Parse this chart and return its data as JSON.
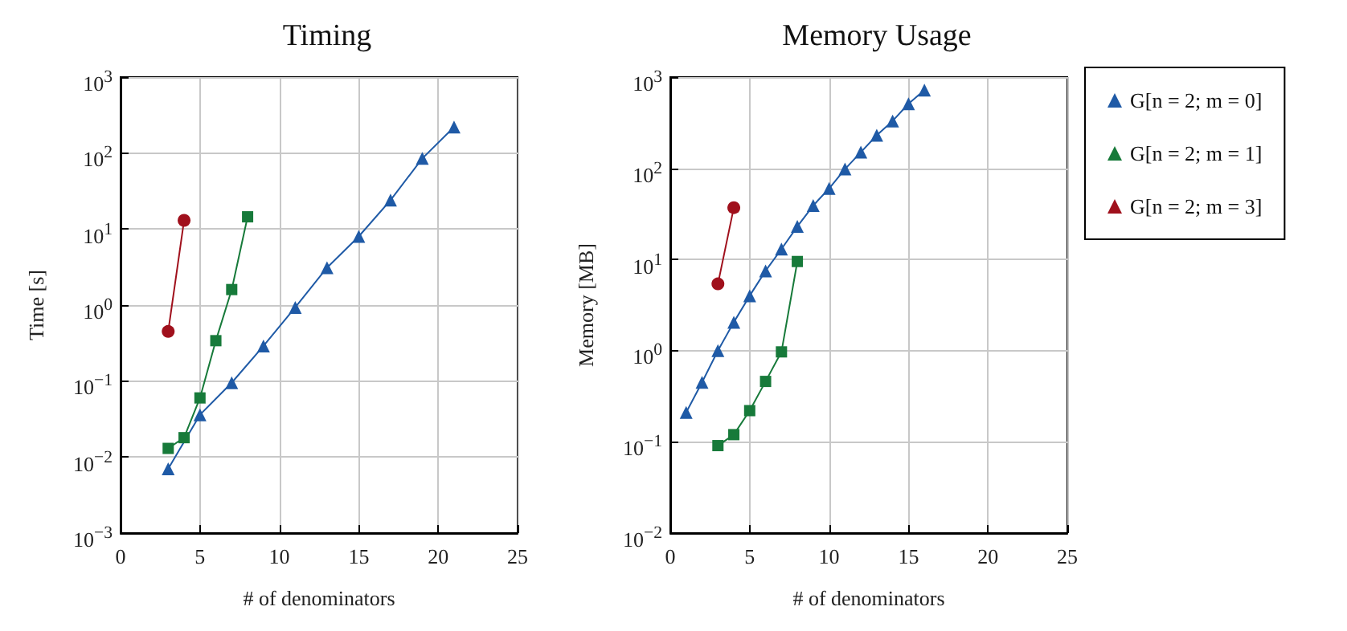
{
  "chart_data": [
    {
      "type": "line",
      "title": "Timing",
      "xlabel": "# of denominators",
      "ylabel": "Time [s]",
      "log": "y",
      "grid": true,
      "xlim": [
        0,
        25
      ],
      "xticks": [
        0,
        5,
        10,
        15,
        20,
        25
      ],
      "ylim": [
        0.001,
        1000
      ],
      "yticks": [
        {
          "value": 0.001,
          "label": "10$^{−3}$"
        },
        {
          "value": 0.01,
          "label": "10$^{−2}$"
        },
        {
          "value": 0.1,
          "label": "10$^{−1}$"
        },
        {
          "value": 1,
          "label": "10$^{0}$"
        },
        {
          "value": 10,
          "label": "10$^{1}$"
        },
        {
          "value": 100,
          "label": "10$^{2}$"
        },
        {
          "value": 1000,
          "label": "10$^{3}$"
        }
      ],
      "series": [
        {
          "color": "#1f5aa6",
          "marker": "triangle",
          "x": [
            3,
            5,
            7,
            9,
            11,
            13,
            15,
            17,
            19,
            21
          ],
          "values": [
            0.007,
            0.036,
            0.095,
            0.29,
            0.93,
            3.1,
            8,
            24,
            85,
            220
          ]
        },
        {
          "color": "#177a3a",
          "marker": "square",
          "x": [
            3,
            4,
            5,
            6,
            7,
            8
          ],
          "values": [
            0.013,
            0.018,
            0.06,
            0.34,
            1.6,
            14.5
          ]
        },
        {
          "color": "#a0101c",
          "marker": "circle",
          "x": [
            3,
            4
          ],
          "values": [
            0.45,
            13
          ]
        }
      ]
    },
    {
      "type": "line",
      "title": "Memory Usage",
      "xlabel": "# of denominators",
      "ylabel": "Memory [MB]",
      "log": "y",
      "grid": true,
      "legend": "right",
      "xlim": [
        0,
        25
      ],
      "xticks": [
        0,
        5,
        10,
        15,
        20,
        25
      ],
      "ylim": [
        0.01,
        1000
      ],
      "yticks": [
        {
          "value": 0.01,
          "label": "10$^{−2}$"
        },
        {
          "value": 0.1,
          "label": "10$^{−1}$"
        },
        {
          "value": 1,
          "label": "10$^{0}$"
        },
        {
          "value": 10,
          "label": "10$^{1}$"
        },
        {
          "value": 100,
          "label": "10$^{2}$"
        },
        {
          "value": 1000,
          "label": "10$^{3}$"
        }
      ],
      "series": [
        {
          "name": "G[n = 2; m = 0]",
          "color": "#1f5aa6",
          "marker": "triangle",
          "x": [
            1,
            2,
            3,
            4,
            5,
            6,
            7,
            8,
            9,
            10,
            11,
            12,
            13,
            14,
            15,
            16
          ],
          "values": [
            0.21,
            0.45,
            1.0,
            2.05,
            4.0,
            7.5,
            13,
            23,
            39,
            60,
            98,
            150,
            230,
            330,
            510,
            720
          ]
        },
        {
          "name": "G[n = 2; m = 1]",
          "color": "#177a3a",
          "marker": "square",
          "x": [
            3,
            4,
            5,
            6,
            7,
            8
          ],
          "values": [
            0.091,
            0.12,
            0.22,
            0.46,
            0.97,
            9.5
          ]
        },
        {
          "name": "G[n = 2; m = 3]",
          "color": "#a0101c",
          "marker": "circle",
          "x": [
            3,
            4
          ],
          "values": [
            5.4,
            37
          ]
        }
      ]
    }
  ]
}
